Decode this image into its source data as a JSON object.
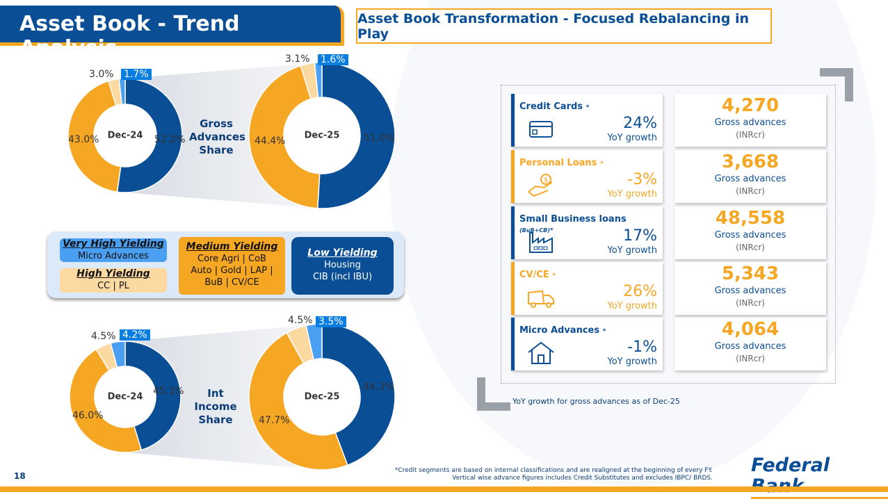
{
  "header": {
    "title": "Asset Book - Trend Analysis",
    "subtitle": "Asset Book Transformation - Focused Rebalancing in Play"
  },
  "colors": {
    "low": "#0a4e96",
    "medium": "#f5a623",
    "high": "#fbd9a0",
    "very_high": "#4a9ff0"
  },
  "chart_data": [
    {
      "type": "pie",
      "title": "Gross Advances Share",
      "center_label": "Dec-24",
      "categories": [
        "Low Yielding",
        "Medium Yielding",
        "High Yielding",
        "Very High Yielding"
      ],
      "values": [
        52.2,
        43.0,
        3.0,
        1.7
      ],
      "labels": [
        "52.2%",
        "43.0%",
        "3.0%",
        "1.7%"
      ]
    },
    {
      "type": "pie",
      "title": "Gross Advances Share",
      "center_label": "Dec-25",
      "categories": [
        "Low Yielding",
        "Medium Yielding",
        "High Yielding",
        "Very High Yielding"
      ],
      "values": [
        51.0,
        44.4,
        3.1,
        1.6
      ],
      "labels": [
        "51.0%",
        "44.4%",
        "3.1%",
        "1.6%"
      ]
    },
    {
      "type": "pie",
      "title": "Int Income Share",
      "center_label": "Dec-24",
      "categories": [
        "Low Yielding",
        "Medium Yielding",
        "High Yielding",
        "Very High Yielding"
      ],
      "values": [
        45.3,
        46.0,
        4.5,
        4.2
      ],
      "labels": [
        "45.3%",
        "46.0%",
        "4.5%",
        "4.2%"
      ]
    },
    {
      "type": "pie",
      "title": "Int Income Share",
      "center_label": "Dec-25",
      "categories": [
        "Low Yielding",
        "Medium Yielding",
        "High Yielding",
        "Very High Yielding"
      ],
      "values": [
        44.3,
        47.7,
        4.5,
        3.5
      ],
      "labels": [
        "44.3%",
        "47.7%",
        "4.5%",
        "3.5%"
      ]
    }
  ],
  "middle_labels": {
    "gross": [
      "Gross",
      "Advances",
      "Share"
    ],
    "income": [
      "Int Income",
      "Share"
    ]
  },
  "legend": {
    "very_high": {
      "title": "Very High Yielding",
      "items": "Micro Advances"
    },
    "high": {
      "title": "High Yielding",
      "items": "CC | PL"
    },
    "medium": {
      "title": "Medium Yielding",
      "lines": [
        "Core Agri | CoB",
        "Auto | Gold | LAP |",
        "BuB | CV/CE"
      ]
    },
    "low": {
      "title": "Low Yielding",
      "lines": [
        "Housing",
        "CIB (incl IBU)"
      ]
    }
  },
  "segments": [
    {
      "name": "Credit Cards",
      "suffix": "*",
      "sub": "",
      "growth": "24%",
      "growth_label": "YoY growth",
      "value": "4,270",
      "value_label": "Gross advances",
      "unit": "(INRcr)",
      "icon": "credit-card-icon",
      "accent": "blue"
    },
    {
      "name": "Personal Loans",
      "suffix": "*",
      "sub": "",
      "growth": "-3%",
      "growth_label": "YoY growth",
      "value": "3,668",
      "value_label": "Gross advances",
      "unit": "(INRcr)",
      "icon": "hand-coin-icon",
      "accent": "orange"
    },
    {
      "name": "Small Business loans",
      "suffix": "*",
      "sub": "(BuB+CB)",
      "growth": "17%",
      "growth_label": "YoY growth",
      "value": "48,558",
      "value_label": "Gross advances",
      "unit": "(INRcr)",
      "icon": "factory-icon",
      "accent": "blue"
    },
    {
      "name": "CV/CE",
      "suffix": "*",
      "sub": "",
      "growth": "26%",
      "growth_label": "YoY growth",
      "value": "5,343",
      "value_label": "Gross advances",
      "unit": "(INRcr)",
      "icon": "truck-icon",
      "accent": "orange"
    },
    {
      "name": "Micro Advances",
      "suffix": "*",
      "sub": "",
      "growth": "-1%",
      "growth_label": "YoY growth",
      "value": "4,064",
      "value_label": "Gross advances",
      "unit": "(INRcr)",
      "icon": "house-icon",
      "accent": "blue"
    }
  ],
  "note": "YoY growth for gross advances as of Dec-25",
  "footnote": [
    "*Credit segments are based on internal classifications and are realigned at the  beginning of every FY.",
    "Vertical wise advance figures includes Credit Substitutes and excludes IBPC/ BRDS."
  ],
  "logo": "Federal Bank",
  "page_number": "18"
}
